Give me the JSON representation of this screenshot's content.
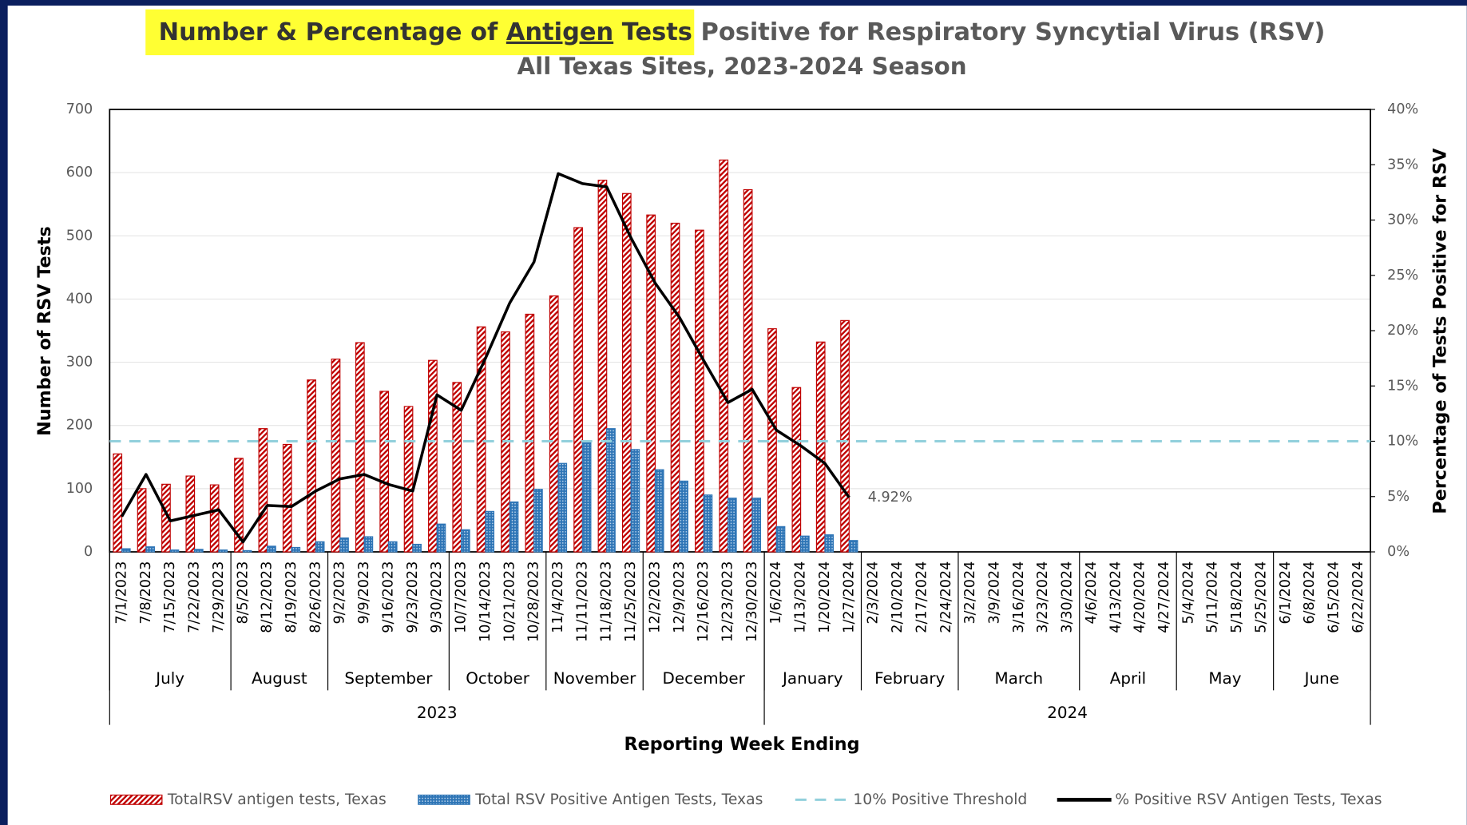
{
  "chart_data": {
    "type": "bar",
    "title": [
      {
        "text": "Number & Percentage of ",
        "highlight": true
      },
      {
        "text": "Antigen",
        "highlight": true,
        "underline": true
      },
      {
        "text": " Tests",
        "highlight": true
      },
      {
        "text": " Positive for Respiratory Syncytial Virus (RSV)"
      }
    ],
    "subtitle": "All Texas Sites, 2023-2024 Season",
    "x_label": "Reporting Week Ending",
    "y_label": "Number of RSV Tests",
    "y2_label": "Percentage of Tests Positive for RSV",
    "categories": [
      "7/1/2023",
      "7/8/2023",
      "7/15/2023",
      "7/22/2023",
      "7/29/2023",
      "8/5/2023",
      "8/12/2023",
      "8/19/2023",
      "8/26/2023",
      "9/2/2023",
      "9/9/2023",
      "9/16/2023",
      "9/23/2023",
      "9/30/2023",
      "10/7/2023",
      "10/14/2023",
      "10/21/2023",
      "10/28/2023",
      "11/4/2023",
      "11/11/2023",
      "11/18/2023",
      "11/25/2023",
      "12/2/2023",
      "12/9/2023",
      "12/16/2023",
      "12/23/2023",
      "12/30/2023",
      "1/6/2024",
      "1/13/2024",
      "1/20/2024",
      "1/27/2024",
      "2/3/2024",
      "2/10/2024",
      "2/17/2024",
      "2/24/2024",
      "3/2/2024",
      "3/9/2024",
      "3/16/2024",
      "3/23/2024",
      "3/30/2024",
      "4/6/2024",
      "4/13/2024",
      "4/20/2024",
      "4/27/2024",
      "5/4/2024",
      "5/11/2024",
      "5/18/2024",
      "5/25/2024",
      "6/1/2024",
      "6/8/2024",
      "6/15/2024",
      "6/22/2024"
    ],
    "months": [
      "July",
      "August",
      "September",
      "October",
      "November",
      "December",
      "January",
      "February",
      "March",
      "April",
      "May",
      "June"
    ],
    "years": [
      "2023",
      "2024"
    ],
    "ylim": [
      0,
      700
    ],
    "yticks": [
      0,
      100,
      200,
      300,
      400,
      500,
      600,
      700
    ],
    "y2lim": [
      0,
      40
    ],
    "y2ticks": [
      {
        "value": 0,
        "label": "0%"
      },
      {
        "value": 5,
        "label": "5%"
      },
      {
        "value": 10,
        "label": "10%"
      },
      {
        "value": 15,
        "label": "15%"
      },
      {
        "value": 20,
        "label": "20%"
      },
      {
        "value": 25,
        "label": "25%"
      },
      {
        "value": 30,
        "label": "30%"
      },
      {
        "value": 35,
        "label": "35%"
      },
      {
        "value": 40,
        "label": "40%"
      }
    ],
    "grid": true,
    "legend": "bottom",
    "series": [
      {
        "name": "TotalRSV antigen tests, Texas",
        "type": "bar",
        "color": "#c00000",
        "pattern": "hatch",
        "values": [
          155,
          100,
          107,
          120,
          106,
          148,
          195,
          170,
          272,
          305,
          331,
          254,
          230,
          303,
          268,
          356,
          348,
          376,
          405,
          513,
          588,
          567,
          533,
          520,
          509,
          620,
          573,
          353,
          260,
          332,
          366,
          null,
          null,
          null,
          null,
          null,
          null,
          null,
          null,
          null,
          null,
          null,
          null,
          null,
          null,
          null,
          null,
          null,
          null,
          null,
          null,
          null
        ]
      },
      {
        "name": "Total RSV Positive Antigen Tests, Texas",
        "type": "bar",
        "color": "#2e75b6",
        "pattern": "dots",
        "values": [
          5,
          8,
          3,
          4,
          3,
          2,
          9,
          7,
          16,
          22,
          24,
          16,
          12,
          44,
          35,
          64,
          79,
          99,
          140,
          173,
          195,
          162,
          130,
          112,
          90,
          85,
          85,
          40,
          25,
          27,
          18,
          null,
          null,
          null,
          null,
          null,
          null,
          null,
          null,
          null,
          null,
          null,
          null,
          null,
          null,
          null,
          null,
          null,
          null,
          null,
          null,
          null
        ]
      },
      {
        "name": "10% Positive Threshold",
        "type": "hline",
        "color": "#92d0dc",
        "axis": "y2",
        "value": 10
      },
      {
        "name": "% Positive RSV Antigen Tests, Texas",
        "type": "line",
        "color": "#000000",
        "axis": "y2",
        "values": [
          3.2,
          7.0,
          2.8,
          3.3,
          3.8,
          0.9,
          4.2,
          4.1,
          5.5,
          6.6,
          7.0,
          6.1,
          5.5,
          14.2,
          12.8,
          17.5,
          22.5,
          26.2,
          34.2,
          33.3,
          33.0,
          28.4,
          24.3,
          21.2,
          17.3,
          13.5,
          14.7,
          11.0,
          9.6,
          8.0,
          4.92,
          null,
          null,
          null,
          null,
          null,
          null,
          null,
          null,
          null,
          null,
          null,
          null,
          null,
          null,
          null,
          null,
          null,
          null,
          null,
          null,
          null
        ],
        "value_labels": [
          null,
          null,
          null,
          null,
          null,
          null,
          null,
          null,
          null,
          null,
          null,
          null,
          null,
          null,
          null,
          null,
          null,
          null,
          null,
          null,
          null,
          null,
          null,
          null,
          null,
          null,
          null,
          null,
          null,
          null,
          "4.92%",
          null,
          null,
          null,
          null,
          null,
          null,
          null,
          null,
          null,
          null,
          null,
          null,
          null,
          null,
          null,
          null,
          null,
          null,
          null,
          null,
          null
        ]
      }
    ]
  }
}
